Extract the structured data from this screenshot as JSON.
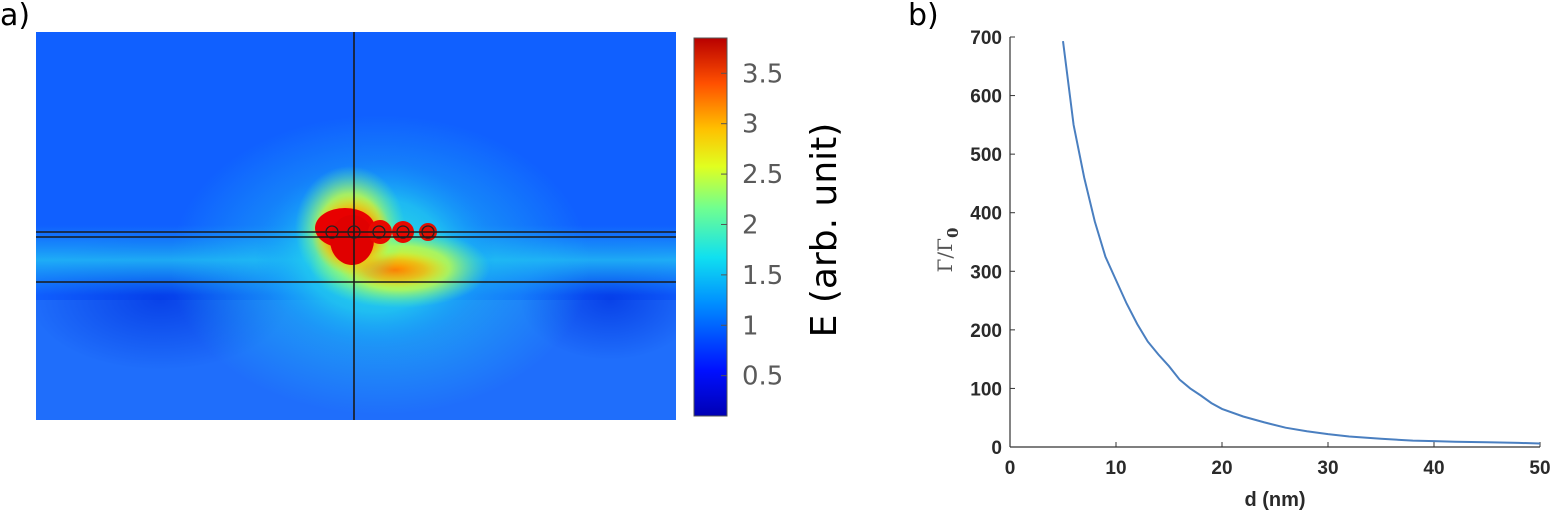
{
  "panels": {
    "a": "a)",
    "b": "b)"
  },
  "colorbar": {
    "title": "E (arb. unit)",
    "ticks": [
      "0.5",
      "1",
      "1.5",
      "2",
      "2.5",
      "3",
      "3.5"
    ],
    "tick_values": [
      0.5,
      1,
      1.5,
      2,
      2.5,
      3,
      3.5
    ],
    "range": [
      0.1,
      3.85
    ],
    "colormap": "jet"
  },
  "chart_data": [
    {
      "type": "heatmap",
      "title": "",
      "description_of_field": "electric field map with enhancement around a chain of five nanoparticles on a horizontal layer",
      "particles_count": 5,
      "colormap": "jet",
      "value_range": [
        0.1,
        3.85
      ],
      "colorbar_label": "E (arb. unit)"
    },
    {
      "type": "line",
      "title": "",
      "xlabel": "d (nm)",
      "ylabel_main": "Γ/Γ",
      "ylabel_sub": "0",
      "xlim": [
        0,
        50
      ],
      "ylim": [
        0,
        700
      ],
      "xticks": [
        0,
        10,
        20,
        30,
        40,
        50
      ],
      "yticks": [
        0,
        100,
        200,
        300,
        400,
        500,
        600,
        700
      ],
      "grid": false,
      "color": "#4a7fc0",
      "series": [
        {
          "x": [
            5,
            6,
            7,
            8,
            9,
            10,
            11,
            12,
            13,
            14,
            15,
            16,
            17,
            18,
            19,
            20,
            22,
            24,
            26,
            28,
            30,
            32,
            35,
            38,
            40,
            42,
            45,
            48,
            50
          ],
          "values": [
            693,
            550,
            460,
            385,
            325,
            285,
            245,
            210,
            180,
            158,
            138,
            115,
            100,
            88,
            75,
            65,
            52,
            42,
            33,
            27,
            22,
            18,
            14,
            11,
            10,
            9,
            8,
            7,
            6
          ]
        }
      ]
    }
  ]
}
